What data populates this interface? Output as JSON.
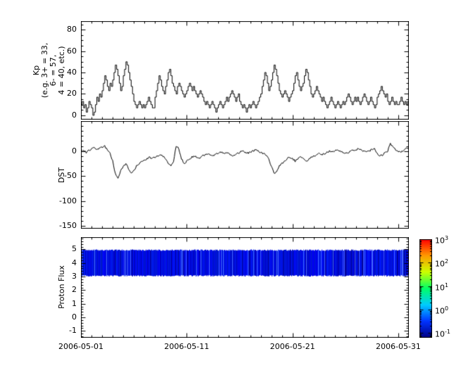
{
  "figure": {
    "background": "#ffffff",
    "axis_color": "#000000",
    "x_axis": {
      "tick_labels": [
        "2006-05-01",
        "2006-05-11",
        "2006-05-21",
        "2006-05-31"
      ],
      "tick_days": [
        0,
        10,
        20,
        30
      ],
      "range_days": 31,
      "minor_tick_step_days": 1
    }
  },
  "chart_data": [
    {
      "type": "line",
      "style": "step",
      "ylabel": "Kp (e.g. 3+ = 33, 6- = 57, 4 = 40, etc.)",
      "ylabel_lines": [
        "Kp",
        "(e.g. 3+ = 33,",
        "6- = 57,",
        "4 = 40, etc.)"
      ],
      "line_color": "#000000",
      "ylim": [
        -4,
        88
      ],
      "yticks": [
        0,
        20,
        40,
        60,
        80
      ],
      "y_minor": 5,
      "x_start": "2006-05-01",
      "dt_days": 0.125,
      "values": [
        10,
        13,
        7,
        10,
        3,
        7,
        13,
        10,
        7,
        0,
        3,
        10,
        17,
        13,
        20,
        17,
        23,
        30,
        37,
        33,
        27,
        23,
        30,
        27,
        33,
        40,
        47,
        43,
        37,
        30,
        23,
        27,
        37,
        43,
        50,
        47,
        40,
        33,
        27,
        20,
        13,
        10,
        7,
        10,
        13,
        10,
        7,
        10,
        7,
        10,
        13,
        17,
        13,
        10,
        7,
        7,
        17,
        23,
        30,
        37,
        33,
        27,
        23,
        20,
        27,
        33,
        40,
        43,
        37,
        30,
        27,
        23,
        20,
        27,
        30,
        27,
        23,
        20,
        17,
        20,
        23,
        27,
        30,
        27,
        23,
        27,
        23,
        20,
        17,
        20,
        23,
        20,
        17,
        13,
        10,
        13,
        10,
        7,
        10,
        13,
        10,
        7,
        3,
        7,
        10,
        13,
        10,
        7,
        10,
        13,
        17,
        13,
        17,
        20,
        23,
        20,
        17,
        13,
        17,
        20,
        13,
        10,
        7,
        10,
        7,
        3,
        7,
        10,
        7,
        10,
        13,
        10,
        7,
        10,
        13,
        17,
        20,
        27,
        33,
        40,
        37,
        30,
        23,
        27,
        33,
        40,
        47,
        43,
        37,
        30,
        23,
        20,
        17,
        20,
        23,
        20,
        17,
        13,
        17,
        20,
        23,
        30,
        37,
        40,
        33,
        27,
        23,
        27,
        30,
        37,
        43,
        40,
        33,
        27,
        20,
        17,
        20,
        23,
        27,
        23,
        20,
        17,
        13,
        17,
        13,
        10,
        7,
        10,
        13,
        17,
        13,
        10,
        7,
        10,
        13,
        10,
        7,
        10,
        13,
        10,
        13,
        17,
        20,
        17,
        13,
        10,
        13,
        17,
        13,
        17,
        13,
        10,
        13,
        17,
        20,
        17,
        13,
        10,
        13,
        17,
        13,
        10,
        7,
        10,
        17,
        20,
        23,
        27,
        23,
        20,
        17,
        20,
        13,
        10,
        13,
        17,
        13,
        10,
        13,
        10,
        10,
        13,
        17,
        13,
        10,
        13,
        10,
        13
      ]
    },
    {
      "type": "line",
      "style": "linear",
      "ylabel": "DST",
      "line_color": "#000000",
      "ylim": [
        -155,
        60
      ],
      "yticks": [
        0,
        -50,
        -100,
        -150
      ],
      "y_minor": 10,
      "x_start": "2006-05-01",
      "dt_days": 0.25,
      "values": [
        0,
        2,
        -3,
        1,
        5,
        8,
        3,
        6,
        8,
        10,
        2,
        -5,
        -20,
        -45,
        -55,
        -40,
        -30,
        -25,
        -35,
        -45,
        -40,
        -30,
        -25,
        -20,
        -18,
        -15,
        -12,
        -15,
        -12,
        -10,
        -8,
        -10,
        -15,
        -25,
        -30,
        -20,
        10,
        5,
        -15,
        -25,
        -20,
        -15,
        -12,
        -10,
        -12,
        -15,
        -10,
        -8,
        -5,
        -8,
        -10,
        -6,
        -4,
        -2,
        -5,
        -3,
        -5,
        -10,
        -8,
        -5,
        -3,
        0,
        -2,
        -4,
        -2,
        0,
        2,
        0,
        -3,
        -5,
        -8,
        -15,
        -30,
        -45,
        -40,
        -30,
        -25,
        -20,
        -15,
        -12,
        -15,
        -20,
        -15,
        -10,
        -15,
        -20,
        -18,
        -12,
        -10,
        -8,
        -5,
        -8,
        -5,
        -3,
        0,
        -2,
        0,
        2,
        0,
        -3,
        -5,
        -3,
        0,
        2,
        3,
        5,
        2,
        0,
        -2,
        0,
        3,
        5,
        -5,
        -10,
        -8,
        -3,
        0,
        15,
        8,
        2,
        0,
        -3,
        2,
        5
      ]
    },
    {
      "type": "heatmap",
      "ylabel": "Proton Flux",
      "ylim": [
        -1.5,
        5.9
      ],
      "yticks": [
        -1,
        0,
        1,
        2,
        3,
        4,
        5
      ],
      "y_minor": 0.2,
      "band_y": [
        3,
        5
      ],
      "band_description": "continuous blue band of low proton flux (~1e-1) with vertical streaks spanning the whole month",
      "flux_range_approx": [
        0.1,
        0.5
      ],
      "colorbar": {
        "scale": "log",
        "tick_labels": [
          "10^3",
          "10^2",
          "10^1",
          "10^0",
          "10^-1"
        ],
        "tick_exponents": [
          3,
          2,
          1,
          0,
          -1
        ],
        "colormap": [
          "#000083",
          "#0033ff",
          "#00ccff",
          "#00ff66",
          "#ccff00",
          "#ff9900",
          "#ff0000"
        ]
      }
    }
  ]
}
